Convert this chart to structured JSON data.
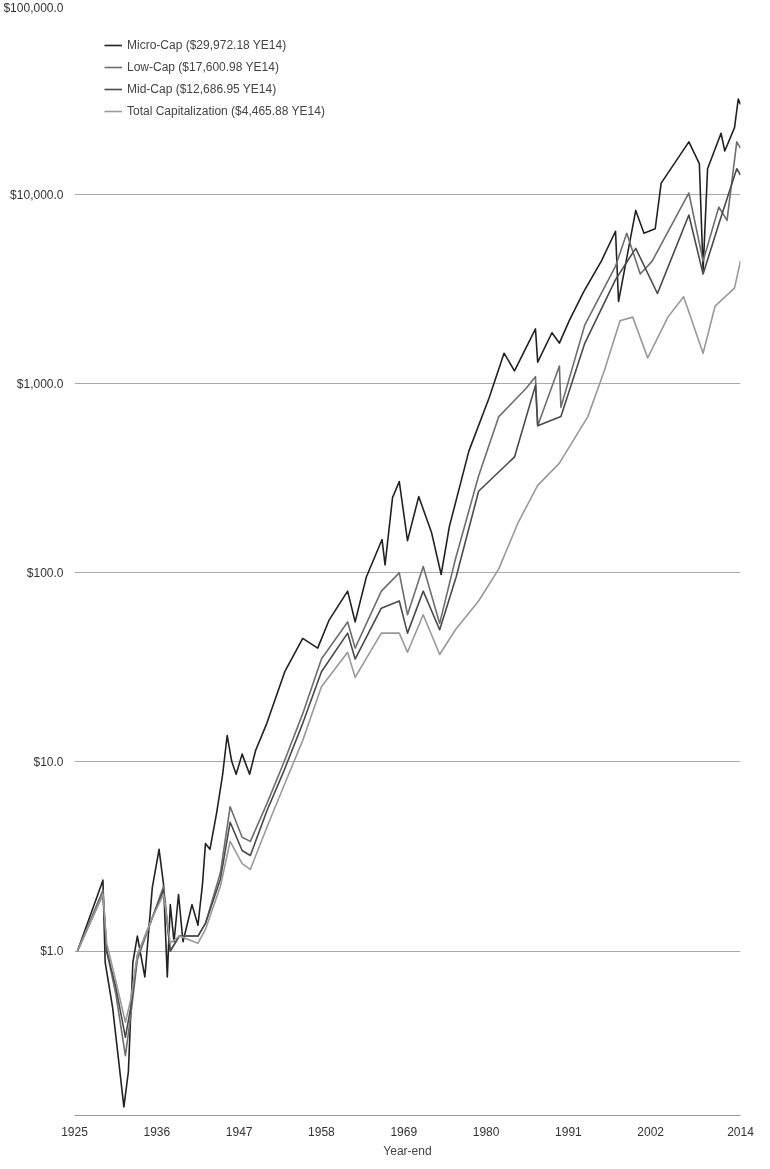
{
  "chart_data": {
    "type": "line",
    "xlabel": "Year-end",
    "log": true,
    "grid": "y",
    "legend": "top left",
    "line_style": "solid",
    "xlim": [
      1925,
      2014
    ],
    "xticks": [
      1925,
      1936,
      1947,
      1958,
      1969,
      1980,
      1991,
      2002,
      2014
    ],
    "ylim": [
      0.135,
      100000
    ],
    "yticks": [
      {
        "value": 1,
        "label": "$1.0"
      },
      {
        "value": 10,
        "label": "$10.0"
      },
      {
        "value": 100,
        "label": "$100.0"
      },
      {
        "value": 1000,
        "label": "$1,000.0"
      },
      {
        "value": 10000,
        "label": "$10,000.0"
      },
      {
        "value": 100000,
        "label": "$100,000.0"
      }
    ],
    "series": [
      {
        "name": "Micro-Cap ($29,972.18 YE14)",
        "color": "#222222",
        "x": [
          1925.4,
          1928.8,
          1929.1,
          1930.1,
          1931.6,
          1932.2,
          1932.8,
          1933.4,
          1934.4,
          1935.4,
          1936.3,
          1936.9,
          1937.4,
          1937.8,
          1938.3,
          1938.9,
          1939.5,
          1940.7,
          1941.5,
          1942.1,
          1942.5,
          1943.1,
          1944.0,
          1944.8,
          1945.4,
          1946.0,
          1946.6,
          1947.4,
          1948.4,
          1949.2,
          1950.7,
          1953.1,
          1955.5,
          1957.5,
          1959.0,
          1961.5,
          1962.5,
          1964.0,
          1966.1,
          1966.5,
          1967.5,
          1968.4,
          1969.5,
          1971.0,
          1972.7,
          1974.0,
          1975.1,
          1977.7,
          1980.4,
          1982.4,
          1983.8,
          1986.6,
          1986.9,
          1988.8,
          1989.8,
          1991.1,
          1993.0,
          1995.4,
          1997.3,
          1997.7,
          2000.0,
          2001.1,
          2002.6,
          2003.4,
          2007.1,
          2008.5,
          2009.0,
          2009.6,
          2011.4,
          2011.9,
          2013.2,
          2013.7,
          2014.0
        ],
        "values": [
          1.0,
          2.37,
          0.87,
          0.5,
          0.15,
          0.23,
          0.87,
          1.2,
          0.73,
          2.17,
          3.45,
          2.25,
          0.73,
          1.76,
          1.12,
          1.99,
          1.12,
          1.76,
          1.37,
          2.25,
          3.7,
          3.45,
          5.4,
          8.6,
          13.8,
          10.1,
          8.6,
          11.0,
          8.6,
          11.5,
          16,
          30,
          45,
          40,
          56,
          80,
          55,
          95,
          150,
          110,
          250,
          304,
          148,
          253,
          164,
          98,
          176,
          440,
          840,
          1450,
          1170,
          1950,
          1300,
          1860,
          1640,
          2150,
          3040,
          4450,
          6400,
          2720,
          8250,
          6250,
          6600,
          11500,
          19000,
          14600,
          3980,
          13700,
          21100,
          17000,
          22600,
          32000,
          29972.18
        ]
      },
      {
        "name": "Low-Cap ($17,600.98 YE14)",
        "color": "#6e6e6e",
        "x": [
          1925.4,
          1928.8,
          1929.3,
          1930.5,
          1931.8,
          1932.5,
          1933.4,
          1935.4,
          1936.9,
          1937.8,
          1939.0,
          1941.5,
          1942.5,
          1944.5,
          1945.8,
          1947.4,
          1948.5,
          1950.7,
          1953.0,
          1955.5,
          1958.0,
          1961.5,
          1962.5,
          1966.0,
          1968.4,
          1969.5,
          1971.6,
          1973.8,
          1975.9,
          1979.0,
          1981.7,
          1985.3,
          1986.6,
          1986.9,
          1989.8,
          1990.0,
          1993.2,
          1997.3,
          1998.8,
          2000.6,
          2002.2,
          2007.1,
          2009.0,
          2011.1,
          2012.2,
          2013.5,
          2014.0
        ],
        "values": [
          1.0,
          2.1,
          1.0,
          0.6,
          0.28,
          0.45,
          0.9,
          1.5,
          2.2,
          1.0,
          1.2,
          1.2,
          1.4,
          2.6,
          5.8,
          4.0,
          3.8,
          6,
          10,
          18,
          35,
          55,
          40,
          80,
          100,
          60,
          108,
          54,
          118,
          325,
          670,
          940,
          1090,
          600,
          1240,
          750,
          2050,
          4180,
          6250,
          3800,
          4450,
          10200,
          4450,
          8600,
          7300,
          19000,
          17600.98
        ]
      },
      {
        "name": "Mid-Cap ($12,686.95 YE14)",
        "color": "#4a4a4a",
        "x": [
          1925.4,
          1928.8,
          1929.3,
          1930.5,
          1931.8,
          1932.5,
          1933.4,
          1935.4,
          1936.9,
          1937.8,
          1939.0,
          1941.5,
          1942.5,
          1944.5,
          1945.8,
          1947.4,
          1948.5,
          1950.7,
          1953.0,
          1955.5,
          1958.0,
          1961.5,
          1962.5,
          1966.0,
          1968.4,
          1969.5,
          1971.6,
          1973.8,
          1976.0,
          1979.0,
          1983.8,
          1986.6,
          1986.9,
          1990.0,
          1993.2,
          1997.3,
          2000.0,
          2002.9,
          2007.1,
          2009.0,
          2011.1,
          2013.5,
          2014.0
        ],
        "values": [
          1.0,
          2.0,
          1.0,
          0.65,
          0.35,
          0.5,
          0.95,
          1.5,
          2.1,
          1.0,
          1.2,
          1.2,
          1.4,
          2.4,
          4.8,
          3.4,
          3.2,
          5.5,
          9,
          16,
          30,
          48,
          35,
          65,
          71,
          48,
          80,
          50,
          95,
          270,
          410,
          980,
          600,
          670,
          1640,
          3550,
          5200,
          3000,
          7800,
          3800,
          7000,
          13700,
          12686.95
        ]
      },
      {
        "name": "Total Capitalization ($4,465.88 YE14)",
        "color": "#999999",
        "x": [
          1925.4,
          1928.8,
          1929.3,
          1930.5,
          1931.8,
          1932.5,
          1933.4,
          1935.4,
          1936.9,
          1937.8,
          1939.0,
          1941.5,
          1942.5,
          1944.5,
          1945.8,
          1947.4,
          1948.5,
          1950.7,
          1953.0,
          1955.5,
          1958.0,
          1961.5,
          1962.5,
          1966.0,
          1968.4,
          1969.5,
          1971.6,
          1973.8,
          1975.9,
          1979.0,
          1981.7,
          1984.3,
          1986.9,
          1989.8,
          1993.6,
          1995.8,
          1997.9,
          1999.6,
          2001.6,
          2004.3,
          2006.4,
          2009.0,
          2010.6,
          2013.2,
          2014.0
        ],
        "values": [
          1.0,
          2.0,
          1.1,
          0.7,
          0.42,
          0.55,
          0.95,
          1.5,
          2.0,
          1.1,
          1.2,
          1.1,
          1.3,
          2.2,
          3.8,
          2.9,
          2.7,
          4.5,
          7.5,
          13,
          25,
          38,
          28,
          48,
          48,
          38,
          60,
          37,
          50,
          71,
          105,
          185,
          290,
          380,
          670,
          1170,
          2150,
          2250,
          1370,
          2250,
          2880,
          1450,
          2570,
          3200,
          4465.88
        ]
      }
    ]
  }
}
